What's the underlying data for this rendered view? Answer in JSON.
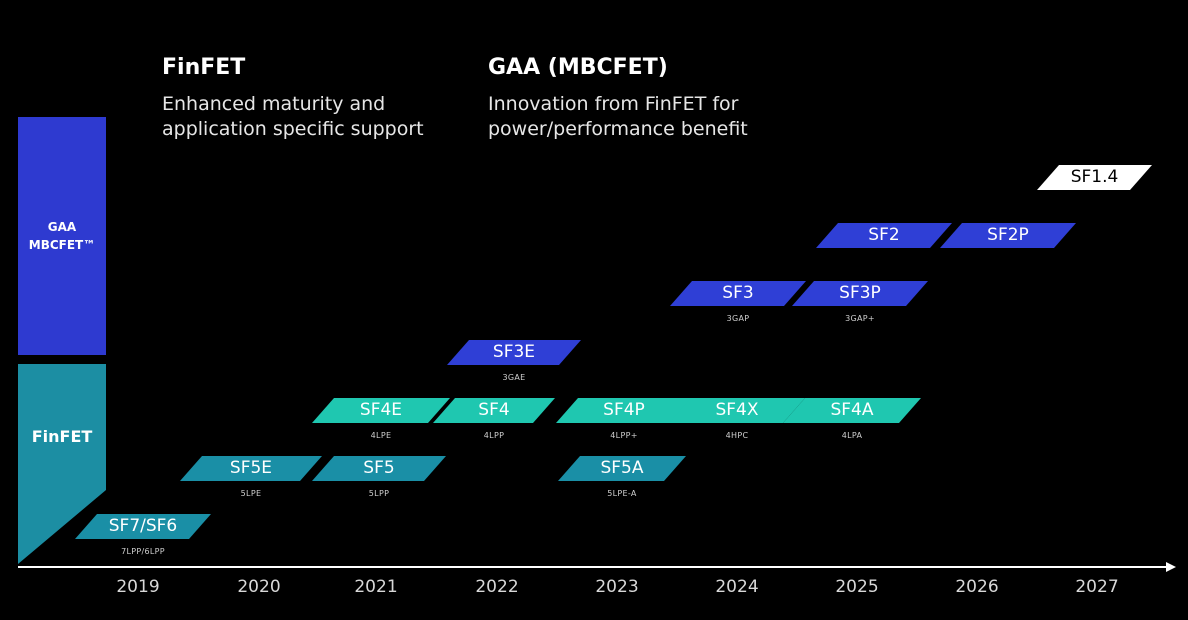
{
  "colors": {
    "gaa": "#2f3fd6",
    "finfet": "#1fc7b0",
    "finfet_dark": "#1a8fa6",
    "future": "#ffffff",
    "legend_gaa": "#2e3ad0",
    "legend_finfet": "#1c8ea3"
  },
  "headers": {
    "finfet": {
      "title": "FinFET",
      "desc1": "Enhanced maturity and",
      "desc2": "application specific support"
    },
    "gaa": {
      "title": "GAA (MBCFET)",
      "desc1": "Innovation from FinFET for",
      "desc2": "power/performance benefit"
    }
  },
  "legend": {
    "gaa_line1": "GAA",
    "gaa_line2": "MBCFET™",
    "finfet": "FinFET"
  },
  "years": [
    "2019",
    "2020",
    "2021",
    "2022",
    "2023",
    "2024",
    "2025",
    "2026",
    "2027"
  ],
  "nodes": [
    {
      "label": "SF7/SF6",
      "sub": "7LPP/6LPP",
      "type": "finfet_dark"
    },
    {
      "label": "SF5E",
      "sub": "5LPE",
      "type": "finfet_dark"
    },
    {
      "label": "SF5",
      "sub": "5LPP",
      "type": "finfet_dark"
    },
    {
      "label": "SF5A",
      "sub": "5LPE-A",
      "type": "finfet_dark"
    },
    {
      "label": "SF4E",
      "sub": "4LPE",
      "type": "finfet"
    },
    {
      "label": "SF4",
      "sub": "4LPP",
      "type": "finfet"
    },
    {
      "label": "SF4P",
      "sub": "4LPP+",
      "type": "finfet"
    },
    {
      "label": "SF4X",
      "sub": "4HPC",
      "type": "finfet"
    },
    {
      "label": "SF4A",
      "sub": "4LPA",
      "type": "finfet"
    },
    {
      "label": "SF3E",
      "sub": "3GAE",
      "type": "gaa"
    },
    {
      "label": "SF3",
      "sub": "3GAP",
      "type": "gaa"
    },
    {
      "label": "SF3P",
      "sub": "3GAP+",
      "type": "gaa"
    },
    {
      "label": "SF2",
      "sub": "",
      "type": "gaa"
    },
    {
      "label": "SF2P",
      "sub": "",
      "type": "gaa"
    },
    {
      "label": "SF1.4",
      "sub": "",
      "type": "future"
    }
  ]
}
